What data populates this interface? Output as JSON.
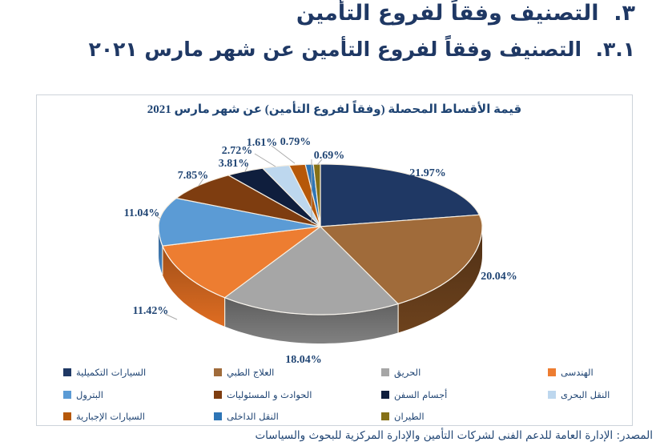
{
  "headings": {
    "h1": "٣.  التصنيف وفقاً لفروع التأمين",
    "h2": "٣.١.  التصنيف وفقاً لفروع التأمين عن شهر مارس ٢٠٢١"
  },
  "source": "المصدر: الإدارة العامة للدعم الفنى لشركات التأمين والإدارة المركزية للبحوث والسياسات",
  "chart_data": {
    "type": "pie",
    "style": "3d",
    "title": "قيمة الأقساط المحصلة (وفقاً لفروع التأمين) عن شهر مارس 2021",
    "unit": "%",
    "start_angle_deg": 0,
    "direction": "clockwise",
    "label_format": "percent_2dp",
    "legend_position": "bottom",
    "slices": [
      {
        "label": "السيارات التكميلية",
        "value": 21.97,
        "color": "#1F3864"
      },
      {
        "label": "العلاج الطبي",
        "value": 20.04,
        "color": "#A06B3A",
        "wall": "#5E3919"
      },
      {
        "label": "الحريق",
        "value": 18.04,
        "color": "#A6A6A6",
        "wall": "#6F6F6F"
      },
      {
        "label": "الهندسى",
        "value": 11.42,
        "color": "#ED7D31",
        "wall": "#C05E1D"
      },
      {
        "label": "البترول",
        "value": 11.04,
        "color": "#5B9BD5",
        "wall": "#3E74A9"
      },
      {
        "label": "الحوادث و المسئوليات",
        "value": 7.85,
        "color": "#7E3D10"
      },
      {
        "label": "أجسام السفن",
        "value": 3.81,
        "color": "#0F1E3D"
      },
      {
        "label": "النقل البحرى",
        "value": 2.72,
        "color": "#BDD7EE"
      },
      {
        "label": "السيارات الإجبارية",
        "value": 1.61,
        "color": "#B65809"
      },
      {
        "label": "النقل الداخلى",
        "value": 0.79,
        "color": "#2E75B6"
      },
      {
        "label": "الطيران",
        "value": 0.69,
        "color": "#857016"
      }
    ]
  }
}
